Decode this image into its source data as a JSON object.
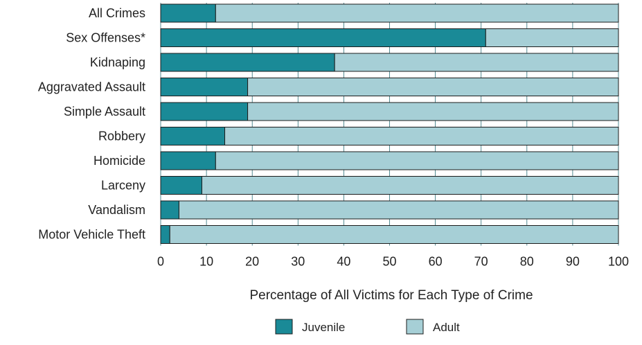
{
  "chart_data": {
    "type": "bar",
    "orientation": "horizontal",
    "stacked": true,
    "categories": [
      "All Crimes",
      "Sex Offenses*",
      "Kidnaping",
      "Aggravated Assault",
      "Simple Assault",
      "Robbery",
      "Homicide",
      "Larceny",
      "Vandalism",
      "Motor Vehicle Theft"
    ],
    "series": [
      {
        "name": "Juvenile",
        "color": "#1a8a97",
        "values": [
          12,
          71,
          38,
          19,
          19,
          14,
          12,
          9,
          4,
          2
        ]
      },
      {
        "name": "Adult",
        "color": "#a6cfd6",
        "values": [
          88,
          29,
          62,
          81,
          81,
          86,
          88,
          91,
          96,
          98
        ]
      }
    ],
    "xlabel": "Percentage of All Victims for Each Type of Crime",
    "ylabel": "",
    "xlim": [
      0,
      100
    ],
    "xticks": [
      "0",
      "10",
      "20",
      "30",
      "40",
      "50",
      "60",
      "70",
      "80",
      "90",
      "100"
    ],
    "grid": "vertical",
    "legend_position": "bottom"
  }
}
